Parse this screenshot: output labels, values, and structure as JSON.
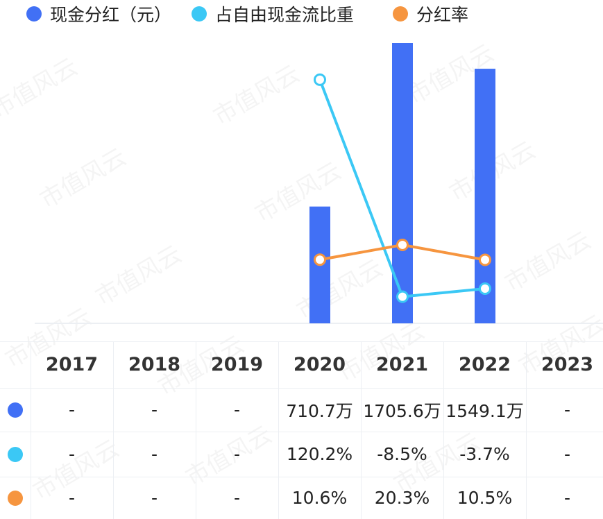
{
  "colors": {
    "cash_dividend": "#4170f5",
    "fcf_ratio": "#3bc8f5",
    "payout_ratio": "#f6953f",
    "grid": "#eceff3"
  },
  "legend": [
    {
      "key": "cash_dividend",
      "label": "现金分红（元）"
    },
    {
      "key": "fcf_ratio",
      "label": "占自由现金流比重"
    },
    {
      "key": "payout_ratio",
      "label": "分红率"
    }
  ],
  "watermark": "市值风云",
  "chart_data": {
    "type": "bar",
    "categories": [
      "2017",
      "2018",
      "2019",
      "2020",
      "2021",
      "2022",
      "2023"
    ],
    "series": [
      {
        "name": "现金分红（元）",
        "type": "bar",
        "unit": "万",
        "values": [
          null,
          null,
          null,
          710.7,
          1705.6,
          1549.1,
          null
        ]
      },
      {
        "name": "占自由现金流比重",
        "type": "line",
        "unit": "%",
        "values": [
          null,
          null,
          null,
          120.2,
          -8.5,
          -3.7,
          null
        ]
      },
      {
        "name": "分红率",
        "type": "line",
        "unit": "%",
        "values": [
          null,
          null,
          null,
          10.6,
          20.3,
          10.5,
          null
        ]
      }
    ],
    "legend_position": "top-left"
  },
  "table": {
    "header": [
      "2017",
      "2018",
      "2019",
      "2020",
      "2021",
      "2022",
      "2023"
    ],
    "rows": [
      {
        "key": "cash_dividend",
        "cells": [
          "-",
          "-",
          "-",
          "710.7万",
          "1705.6万",
          "1549.1万",
          "-"
        ]
      },
      {
        "key": "fcf_ratio",
        "cells": [
          "-",
          "-",
          "-",
          "120.2%",
          "-8.5%",
          "-3.7%",
          "-"
        ]
      },
      {
        "key": "payout_ratio",
        "cells": [
          "-",
          "-",
          "-",
          "10.6%",
          "20.3%",
          "10.5%",
          "-"
        ]
      }
    ]
  }
}
